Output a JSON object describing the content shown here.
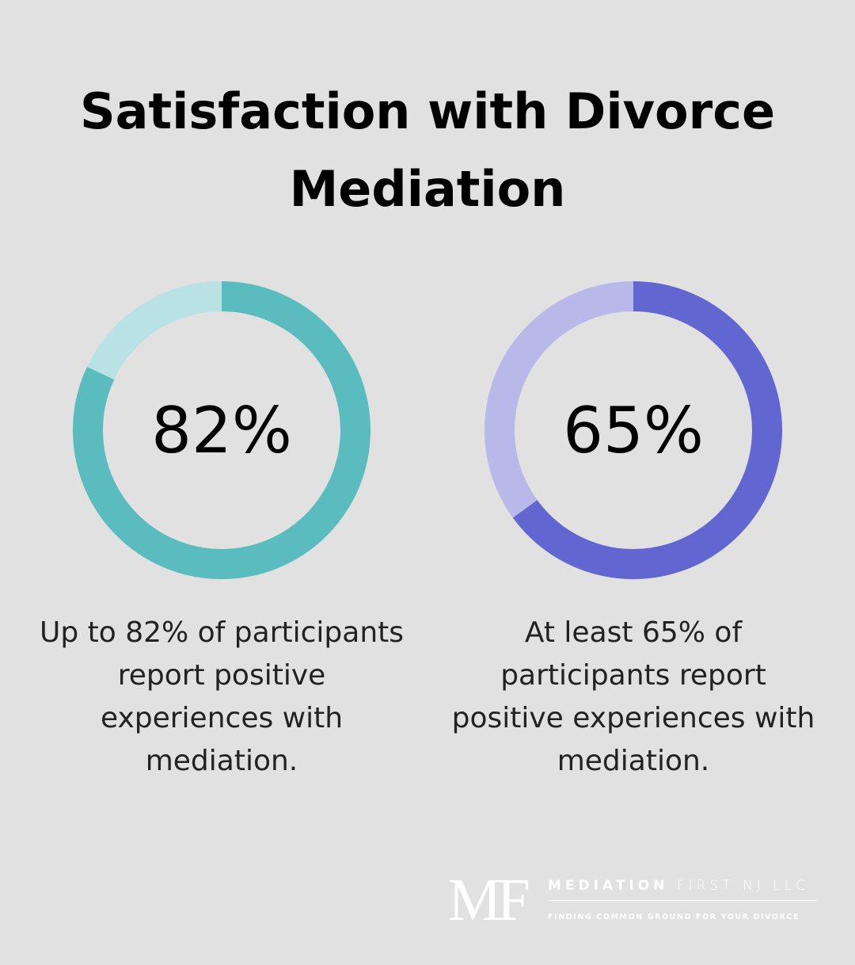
{
  "title": "Satisfaction with Divorce Mediation",
  "chart_data": [
    {
      "type": "donut",
      "values": [
        82
      ],
      "value_labels": [
        "82%"
      ],
      "color": "#5bbcc0",
      "track_color": "#b9e2e5",
      "caption": "Up to 82% of participants report positive experiences with mediation."
    },
    {
      "type": "donut",
      "values": [
        65
      ],
      "value_labels": [
        "65%"
      ],
      "color": "#6266d0",
      "track_color": "#b8b9e8",
      "caption": "At least 65% of participants report positive experiences with mediation."
    }
  ],
  "logo": {
    "mark": "MF",
    "name_bold": "MEDIATION",
    "name_light": "FIRST NJ LLC",
    "tagline": "FINDING COMMON GROUND FOR YOUR DIVORCE"
  }
}
